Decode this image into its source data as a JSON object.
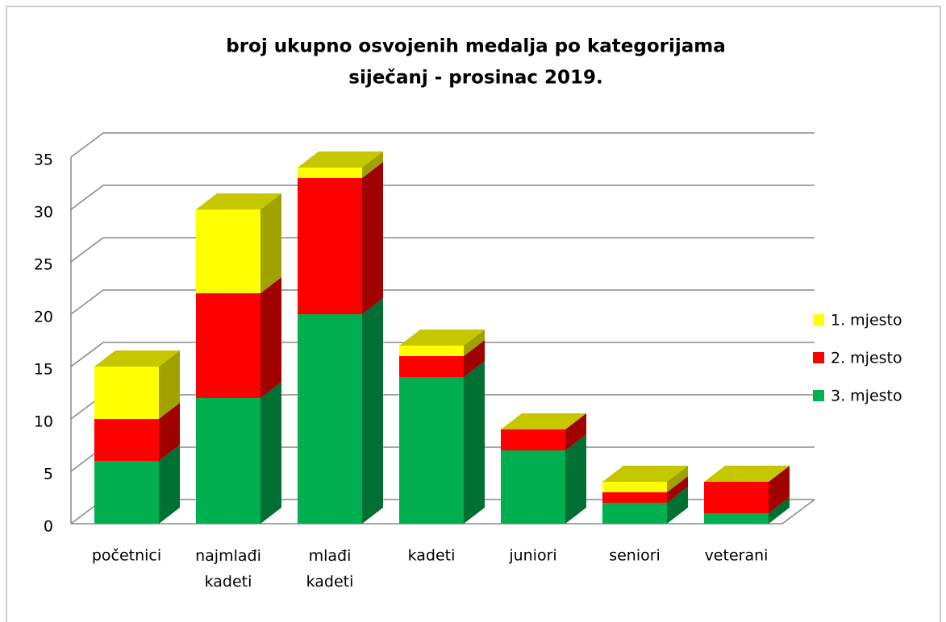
{
  "chart_data": {
    "type": "bar3d_stacked",
    "title": "broj ukupno osvojenih medalja po kategorijama",
    "subtitle": "siječanj - prosinac 2019.",
    "categories": [
      "početnici",
      "najmlađi kadeti",
      "mlađi kadeti",
      "kadeti",
      "juniori",
      "seniori",
      "veterani"
    ],
    "series": [
      {
        "name": "3. mjesto",
        "color": "#00b050",
        "values": [
          6,
          12,
          20,
          14,
          7,
          2,
          1
        ]
      },
      {
        "name": "2. mjesto",
        "color": "#ff0000",
        "values": [
          4,
          10,
          13,
          2,
          2,
          1,
          3
        ]
      },
      {
        "name": "1. mjesto",
        "color": "#ffff00",
        "values": [
          5,
          8,
          1,
          1,
          0,
          1,
          0
        ]
      }
    ],
    "ylim": [
      0,
      35
    ],
    "yticks": [
      0,
      5,
      10,
      15,
      20,
      25,
      30,
      35
    ],
    "grid": true,
    "legend": "right"
  }
}
